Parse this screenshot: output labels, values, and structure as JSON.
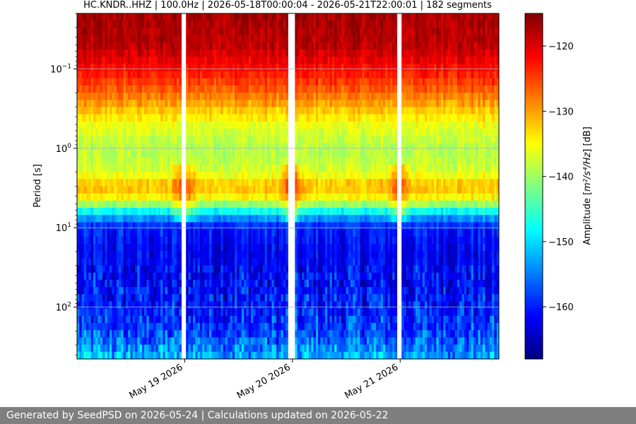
{
  "chart_data": {
    "type": "heatmap",
    "title": "HC.KNDR..HHZ | 100.0Hz | 2026-05-18T00:00:04 - 2026-05-21T22:00:01 | 182 segments",
    "xlabel": "",
    "ylabel": "Period [s]",
    "y_scale": "log",
    "y_inverted": true,
    "ylim": [
      0.02,
      450
    ],
    "y_ticks": [
      {
        "value": 0.1,
        "base": "10",
        "exp": "−1"
      },
      {
        "value": 1,
        "base": "10",
        "exp": "0"
      },
      {
        "value": 10,
        "base": "10",
        "exp": "1"
      },
      {
        "value": 100,
        "base": "10",
        "exp": "2"
      }
    ],
    "xlim": [
      "2026-05-18T00:00:04",
      "2026-05-21T22:00:01"
    ],
    "x_ticks": [
      {
        "value": "2026-05-19",
        "label": "May 19 2026"
      },
      {
        "value": "2026-05-20",
        "label": "May 20 2026"
      },
      {
        "value": "2026-05-21",
        "label": "May 21 2026"
      }
    ],
    "data_gaps": [
      "2026-05-18T23:50",
      "2026-05-19T23:50",
      "2026-05-20T23:50"
    ],
    "grid": true,
    "segments": 182,
    "colormap": "jet",
    "colorbar": {
      "label_prefix": "Amplitude [",
      "label_math": "m²/s⁴/Hz",
      "label_suffix": "] [dB]",
      "range": [
        -168,
        -115
      ],
      "ticks": [
        "−120",
        "−130",
        "−140",
        "−150",
        "−160"
      ],
      "tick_values": [
        -120,
        -130,
        -140,
        -150,
        -160
      ]
    },
    "profile": {
      "description_free": true,
      "period_s": [
        0.02,
        0.05,
        0.1,
        0.2,
        0.3,
        0.5,
        1,
        2,
        3,
        4,
        5,
        7,
        10,
        20,
        50,
        100,
        200,
        450
      ],
      "amplitude_db": [
        -117,
        -118,
        -122,
        -127,
        -131,
        -136,
        -139,
        -137,
        -131,
        -134,
        -140,
        -152,
        -160,
        -162,
        -161,
        -160,
        -158,
        -152
      ]
    }
  },
  "footer": {
    "text": "Generated by SeedPSD on 2026-05-24 | Calculations updated on 2026-05-22",
    "background": "#7f7f7f"
  }
}
